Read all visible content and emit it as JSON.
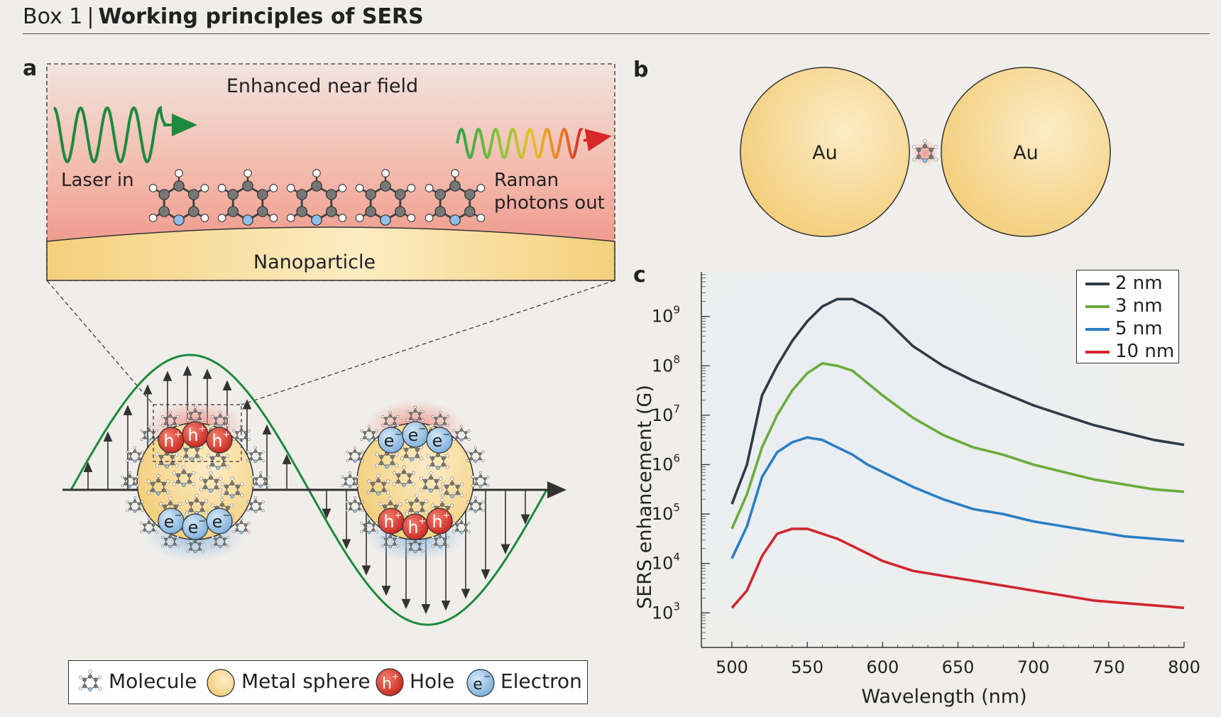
{
  "header": {
    "label": "Box 1",
    "separator": "|",
    "title": "Working principles of SERS"
  },
  "panels": {
    "a": {
      "letter": "a",
      "near_field_label": "Enhanced near field",
      "laser_label": "Laser in",
      "raman_label_1": "Raman",
      "raman_label_2": "photons out",
      "nanoparticle_label": "Nanoparticle",
      "hole_symbol": "h",
      "electron_symbol": "e",
      "plus": "+",
      "minus": "−"
    },
    "b": {
      "letter": "b",
      "sphere_left": "Au",
      "sphere_right": "Au"
    },
    "c": {
      "letter": "c"
    }
  },
  "legend_a": {
    "items": [
      {
        "label": "Molecule"
      },
      {
        "label": "Metal sphere"
      },
      {
        "label": "Hole",
        "symbol": "h",
        "sup": "+"
      },
      {
        "label": "Electron",
        "symbol": "e",
        "sup": "−"
      }
    ]
  },
  "colors": {
    "wave_green": "#1c8a3c",
    "hole_red": "#d9342b",
    "electron_blue": "#7fb3df",
    "gold": "#f6d487",
    "near_field_pink": "#ee9688"
  },
  "chart_data": {
    "type": "line",
    "xlabel": "Wavelength (nm)",
    "ylabel": "SERS enhancement (G)",
    "xlim": [
      500,
      800
    ],
    "xticks": [
      500,
      550,
      600,
      650,
      700,
      750,
      800
    ],
    "ylog": true,
    "ylim_log10": [
      2.3,
      9.9
    ],
    "ytick_exponents": [
      3,
      4,
      5,
      6,
      7,
      8,
      9
    ],
    "ytick_base": "10",
    "legend_position": "top-right",
    "x": [
      500,
      510,
      520,
      530,
      540,
      550,
      560,
      570,
      580,
      590,
      600,
      620,
      640,
      660,
      680,
      700,
      720,
      740,
      760,
      780,
      800
    ],
    "series": [
      {
        "name": "2 nm",
        "color": "#2e3a47",
        "log10_values": [
          5.2,
          6.0,
          7.4,
          8.0,
          8.5,
          8.9,
          9.2,
          9.35,
          9.35,
          9.2,
          9.0,
          8.4,
          8.0,
          7.7,
          7.45,
          7.2,
          7.0,
          6.8,
          6.65,
          6.5,
          6.4
        ]
      },
      {
        "name": "3 nm",
        "color": "#6aac3c",
        "log10_values": [
          4.7,
          5.4,
          6.35,
          7.0,
          7.5,
          7.85,
          8.05,
          8.0,
          7.9,
          7.65,
          7.4,
          6.95,
          6.6,
          6.35,
          6.2,
          6.0,
          5.85,
          5.7,
          5.6,
          5.5,
          5.45
        ]
      },
      {
        "name": "5 nm",
        "color": "#2a7fc4",
        "log10_values": [
          4.1,
          4.75,
          5.75,
          6.25,
          6.45,
          6.55,
          6.5,
          6.35,
          6.2,
          6.0,
          5.85,
          5.55,
          5.3,
          5.1,
          5.0,
          4.85,
          4.75,
          4.65,
          4.55,
          4.5,
          4.45
        ]
      },
      {
        "name": "10 nm",
        "color": "#d0262e",
        "log10_values": [
          3.1,
          3.45,
          4.15,
          4.6,
          4.7,
          4.7,
          4.6,
          4.5,
          4.35,
          4.2,
          4.05,
          3.85,
          3.75,
          3.65,
          3.55,
          3.45,
          3.35,
          3.25,
          3.2,
          3.15,
          3.1
        ]
      }
    ]
  }
}
